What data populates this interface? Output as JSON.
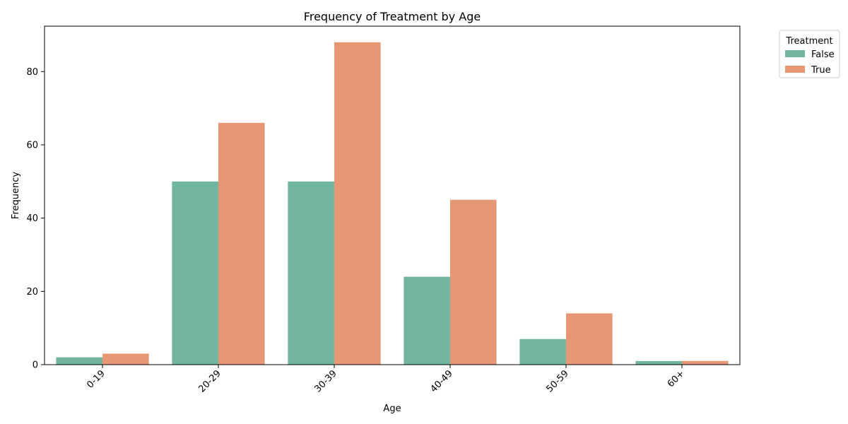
{
  "chart_data": {
    "type": "bar",
    "title": "Frequency of Treatment by Age",
    "xlabel": "Age",
    "ylabel": "Frequency",
    "categories": [
      "0-19",
      "20-29",
      "30-39",
      "40-49",
      "50-59",
      "60+"
    ],
    "series": [
      {
        "name": "False",
        "color": "#72b5a1",
        "values": [
          2,
          50,
          50,
          24,
          7,
          1
        ]
      },
      {
        "name": "True",
        "color": "#e89775",
        "values": [
          3,
          66,
          88,
          45,
          14,
          1
        ]
      }
    ],
    "ylim": [
      0,
      92.4
    ],
    "yticks": [
      0,
      20,
      40,
      60,
      80
    ],
    "x_tick_rotation": "45 degrees",
    "grid": false,
    "legend": {
      "title": "Treatment",
      "placement": "outside top-right"
    }
  }
}
